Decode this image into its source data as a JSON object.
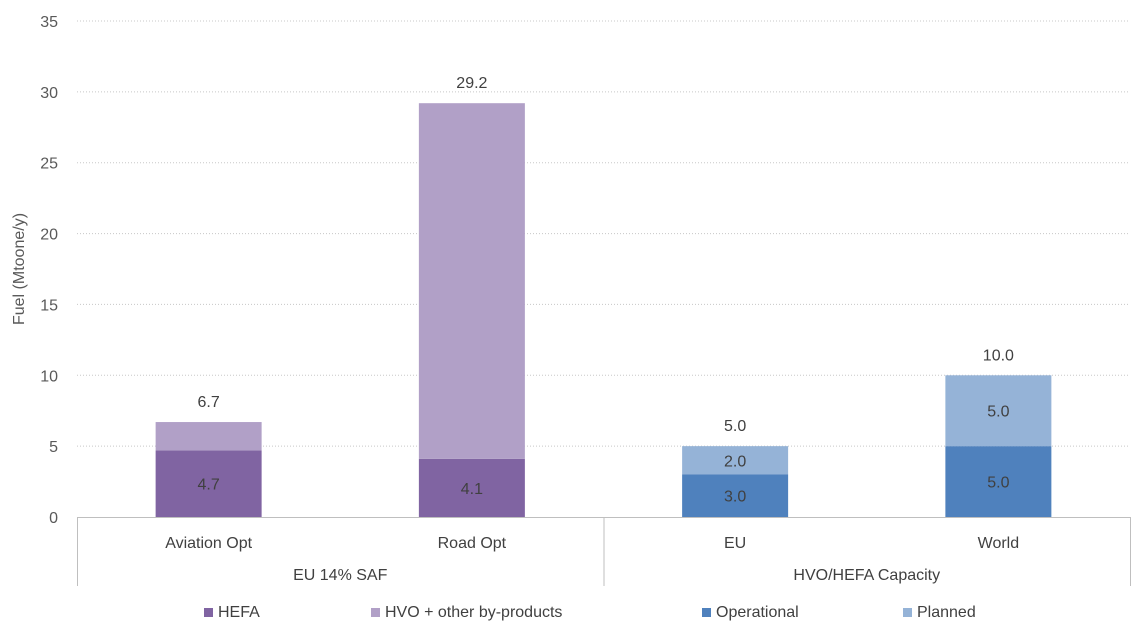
{
  "chart_data": {
    "type": "bar",
    "stacked": true,
    "ylabel": "Fuel (Mtoone/y)",
    "ylim": [
      0,
      35
    ],
    "yticks": [
      0,
      5,
      10,
      15,
      20,
      25,
      30,
      35
    ],
    "grid": true,
    "legend_position": "bottom",
    "groups": [
      {
        "label": "EU 14% SAF",
        "categories": [
          "Aviation Opt",
          "Road Opt"
        ]
      },
      {
        "label": "HVO/HEFA Capacity",
        "categories": [
          "EU",
          "World"
        ]
      }
    ],
    "categories": [
      "Aviation Opt",
      "Road Opt",
      "EU",
      "World"
    ],
    "series": [
      {
        "name": "HEFA",
        "color": "#8064a2",
        "values": [
          4.7,
          4.1,
          null,
          null
        ],
        "labels": [
          "4.7",
          "4.1",
          null,
          null
        ]
      },
      {
        "name": "HVO + other by-products",
        "color": "#b1a0c7",
        "values": [
          2.0,
          25.1,
          null,
          null
        ],
        "labels": [
          null,
          null,
          null,
          null
        ]
      },
      {
        "name": "Operational",
        "color": "#4f81bd",
        "values": [
          null,
          null,
          3.0,
          5.0
        ],
        "labels": [
          null,
          null,
          "3.0",
          "5.0"
        ]
      },
      {
        "name": "Planned",
        "color": "#95b3d7",
        "values": [
          null,
          null,
          2.0,
          5.0
        ],
        "labels": [
          null,
          null,
          "2.0",
          "5.0"
        ]
      }
    ],
    "totals": [
      "6.7",
      "29.2",
      "5.0",
      "10.0"
    ]
  }
}
